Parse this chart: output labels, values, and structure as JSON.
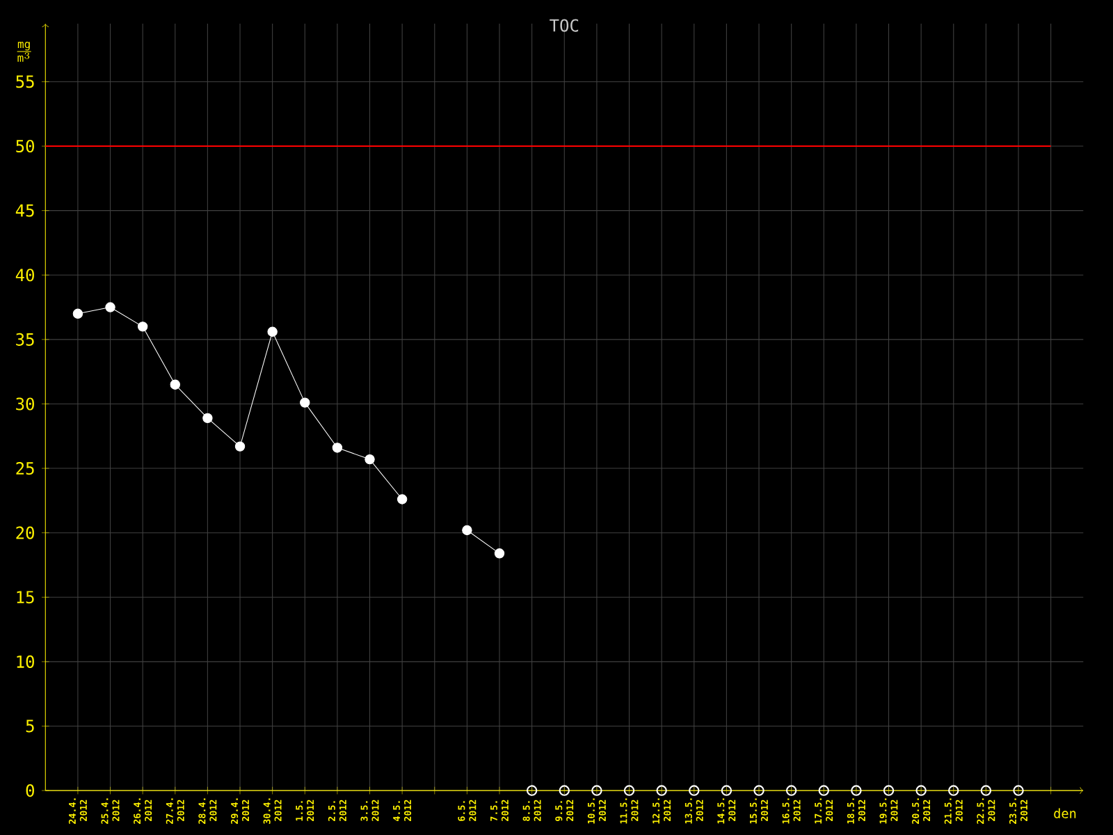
{
  "chart_data": {
    "type": "line",
    "title": "TOC",
    "xlabel": "den",
    "ylabel": "\\frac{\\mathrm{mg}}{\\mathrm{m}^{3}}",
    "categories": [
      "24.4. 2012",
      "25.4. 2012",
      "26.4. 2012",
      "27.4. 2012",
      "28.4. 2012",
      "29.4. 2012",
      "30.4. 2012",
      "1.5. 2012",
      "2.5. 2012",
      "3.5. 2012",
      "4.5. 2012",
      null,
      "6.5. 2012",
      "7.5. 2012",
      "8.5. 2012",
      "9.5. 2012",
      "10.5. 2012",
      "11.5. 2012",
      "12.5. 2012",
      "13.5. 2012",
      "14.5. 2012",
      "15.5. 2012",
      "16.5. 2012",
      "17.5. 2012",
      "18.5. 2012",
      "19.5. 2012",
      "20.5. 2012",
      "21.5. 2012",
      "22.5. 2012",
      "23.5. 2012",
      null
    ],
    "series": [
      {
        "color": "#ffffff",
        "values": [
          37.0,
          37.5,
          36.0,
          31.5,
          28.9,
          26.7,
          35.6,
          30.1,
          26.6,
          25.7,
          22.6,
          null,
          20.2,
          18.4,
          null,
          null,
          null,
          null,
          null,
          null,
          null,
          null,
          null,
          null,
          null,
          null,
          null,
          null,
          null,
          null,
          null
        ]
      },
      {
        "type": "scatter",
        "color": "#ffffff",
        "values": [
          null,
          null,
          null,
          null,
          null,
          null,
          null,
          null,
          null,
          null,
          null,
          null,
          null,
          null,
          0,
          0,
          0,
          0,
          0,
          0,
          0,
          0,
          0,
          0,
          0,
          0,
          0,
          0,
          0,
          0,
          null
        ]
      }
    ],
    "ylim": [
      0,
      59.5
    ],
    "yticks": [
      0,
      5,
      10,
      15,
      20,
      25,
      30,
      35,
      40,
      45,
      50,
      55
    ],
    "grid": true,
    "marker": "circle",
    "line_style": "solid",
    "ref_lines": [
      {
        "axis": "y",
        "value": 50,
        "color": "#ff0000"
      }
    ]
  }
}
